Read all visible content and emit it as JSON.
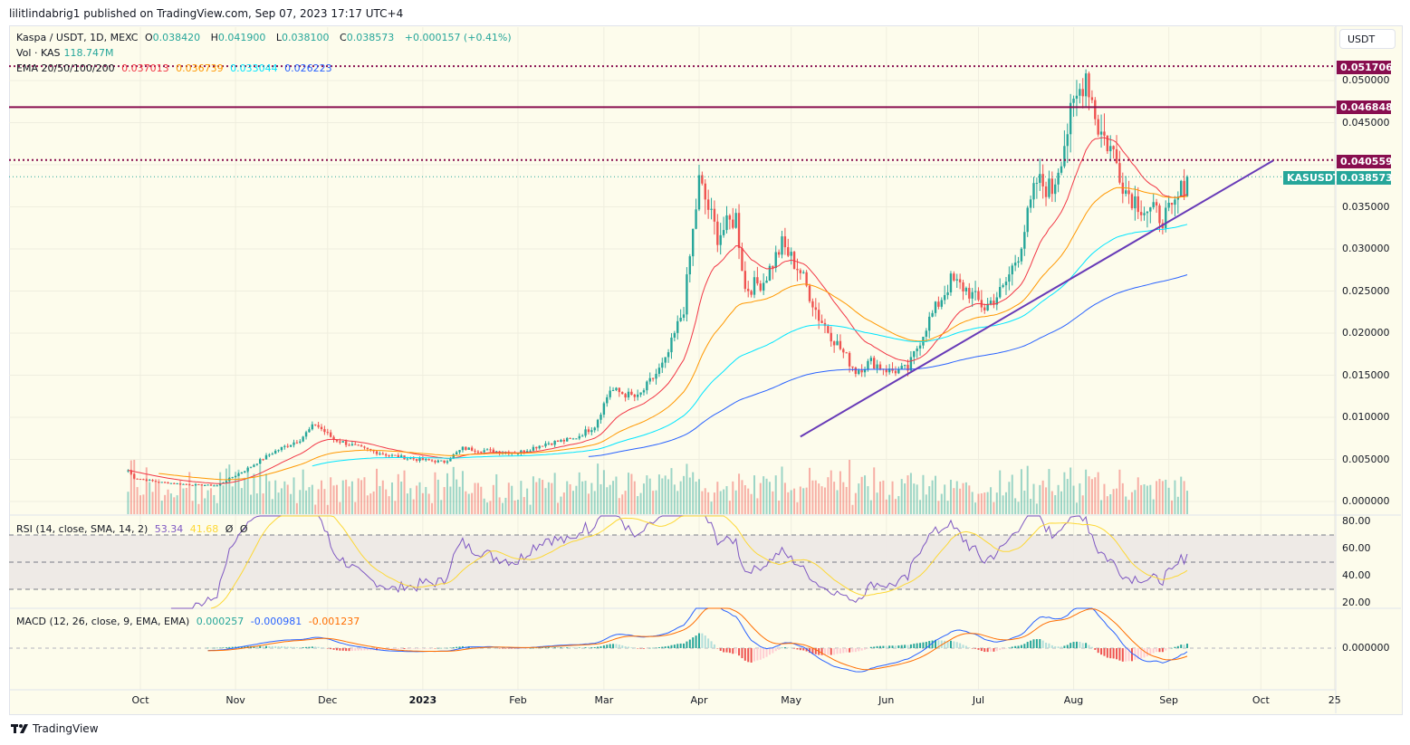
{
  "header": {
    "published": "lilitlindabrig1 published on TradingView.com, Sep 07, 2023 17:17 UTC+4"
  },
  "legend": {
    "symbol": "Kaspa / USDT, 1D, MEXC",
    "o_label": "O",
    "o": "0.038420",
    "h_label": "H",
    "h": "0.041900",
    "l_label": "L",
    "l": "0.038100",
    "c_label": "C",
    "c": "0.038573",
    "change": "+0.000157 (+0.41%)",
    "vol_label": "Vol · KAS",
    "vol": "118.747M",
    "ema_label": "EMA 20/50/100/200",
    "ema20": "0.037013",
    "ema50": "0.036739",
    "ema100": "0.033044",
    "ema200": "0.026223",
    "rsi_label": "RSI (14, close, SMA, 14, 2)",
    "rsi": "53.34",
    "rsi_sma": "41.68",
    "rsi_extra1": "Ø",
    "rsi_extra2": "Ø",
    "macd_label": "MACD (12, 26, close, 9, EMA, EMA)",
    "macd_hist": "0.000257",
    "macd": "-0.000981",
    "macd_signal": "-0.001237"
  },
  "currency_button": "USDT",
  "price_tags": {
    "high_line": "0.051706",
    "resistance": "0.046848",
    "level": "0.040559",
    "symbol": "KASUSDT",
    "last": "0.038573"
  },
  "colors": {
    "up": "#26a69a",
    "down": "#ef5350",
    "ema20": "#f23645",
    "ema50": "#ff9800",
    "ema100": "#00e5ff",
    "ema200": "#2962ff",
    "levels": "#880e4f",
    "trendline": "#673ab7",
    "rsi": "#7e57c2",
    "rsi_sma": "#fdd835",
    "macd": "#2962ff",
    "signal": "#ff6d00"
  },
  "brand": "TradingView",
  "chart_data": {
    "type": "candlestick",
    "title": "Kaspa / USDT, 1D, MEXC",
    "ylim": [
      0,
      0.055
    ],
    "y_ticks": [
      "0.050000",
      "0.045000",
      "0.035000",
      "0.030000",
      "0.025000",
      "0.020000",
      "0.015000",
      "0.010000",
      "0.005000",
      "0.000000"
    ],
    "x_ticks": [
      {
        "label": "Oct",
        "date": "2022-10-01"
      },
      {
        "label": "Nov",
        "date": "2022-11-01"
      },
      {
        "label": "Dec",
        "date": "2022-12-01"
      },
      {
        "label": "2023",
        "date": "2023-01-01"
      },
      {
        "label": "Feb",
        "date": "2023-02-01"
      },
      {
        "label": "Mar",
        "date": "2023-03-01"
      },
      {
        "label": "Apr",
        "date": "2023-04-01"
      },
      {
        "label": "May",
        "date": "2023-05-01"
      },
      {
        "label": "Jun",
        "date": "2023-06-01"
      },
      {
        "label": "Jul",
        "date": "2023-07-01"
      },
      {
        "label": "Aug",
        "date": "2023-08-01"
      },
      {
        "label": "Sep",
        "date": "2023-09-01"
      },
      {
        "label": "Oct",
        "date": "2023-10-01"
      },
      {
        "label": "25",
        "date": "2023-10-25"
      }
    ],
    "close_series": [
      [
        "2022-09-27",
        0.0037
      ],
      [
        "2022-09-29",
        0.0028
      ],
      [
        "2022-10-07",
        0.0023
      ],
      [
        "2022-10-17",
        0.002
      ],
      [
        "2022-10-26",
        0.0019
      ],
      [
        "2022-11-04",
        0.0037
      ],
      [
        "2022-11-13",
        0.0058
      ],
      [
        "2022-11-22",
        0.0074
      ],
      [
        "2022-11-27",
        0.0092
      ],
      [
        "2022-12-03",
        0.0074
      ],
      [
        "2022-12-12",
        0.0063
      ],
      [
        "2022-12-21",
        0.0055
      ],
      [
        "2022-12-30",
        0.005
      ],
      [
        "2023-01-08",
        0.0047
      ],
      [
        "2023-01-14",
        0.0063
      ],
      [
        "2023-01-23",
        0.006
      ],
      [
        "2023-02-01",
        0.0058
      ],
      [
        "2023-02-10",
        0.0069
      ],
      [
        "2023-02-19",
        0.0074
      ],
      [
        "2023-02-26",
        0.009
      ],
      [
        "2023-03-03",
        0.0133
      ],
      [
        "2023-03-12",
        0.0123
      ],
      [
        "2023-03-21",
        0.0166
      ],
      [
        "2023-03-27",
        0.023
      ],
      [
        "2023-04-01",
        0.038
      ],
      [
        "2023-04-07",
        0.0316
      ],
      [
        "2023-04-13",
        0.0338
      ],
      [
        "2023-04-16",
        0.0252
      ],
      [
        "2023-04-22",
        0.0262
      ],
      [
        "2023-04-28",
        0.0305
      ],
      [
        "2023-05-04",
        0.0273
      ],
      [
        "2023-05-10",
        0.0219
      ],
      [
        "2023-05-16",
        0.0187
      ],
      [
        "2023-05-22",
        0.0155
      ],
      [
        "2023-05-27",
        0.0166
      ],
      [
        "2023-06-02",
        0.0155
      ],
      [
        "2023-06-08",
        0.0157
      ],
      [
        "2023-06-14",
        0.0209
      ],
      [
        "2023-06-22",
        0.0262
      ],
      [
        "2023-06-27",
        0.0252
      ],
      [
        "2023-07-03",
        0.023
      ],
      [
        "2023-07-09",
        0.0252
      ],
      [
        "2023-07-14",
        0.0295
      ],
      [
        "2023-07-20",
        0.038
      ],
      [
        "2023-07-25",
        0.037
      ],
      [
        "2023-07-31",
        0.0456
      ],
      [
        "2023-08-05",
        0.051
      ],
      [
        "2023-08-09",
        0.0445
      ],
      [
        "2023-08-14",
        0.0413
      ],
      [
        "2023-08-18",
        0.037
      ],
      [
        "2023-08-24",
        0.0348
      ],
      [
        "2023-08-30",
        0.0338
      ],
      [
        "2023-09-02",
        0.0343
      ],
      [
        "2023-09-07",
        0.038573
      ]
    ],
    "horizontal_levels": [
      {
        "value": 0.051706,
        "style": "dotted"
      },
      {
        "value": 0.046848,
        "style": "solid"
      },
      {
        "value": 0.040559,
        "style": "dotted"
      }
    ],
    "trendline": [
      [
        "2023-05-04",
        0.0077
      ],
      [
        "2023-10-05",
        0.0405
      ]
    ],
    "rsi_ticks": [
      "80.00",
      "60.00",
      "40.00",
      "20.00"
    ],
    "rsi_band": [
      30,
      70
    ],
    "macd_ticks": [
      "0.000000"
    ]
  }
}
